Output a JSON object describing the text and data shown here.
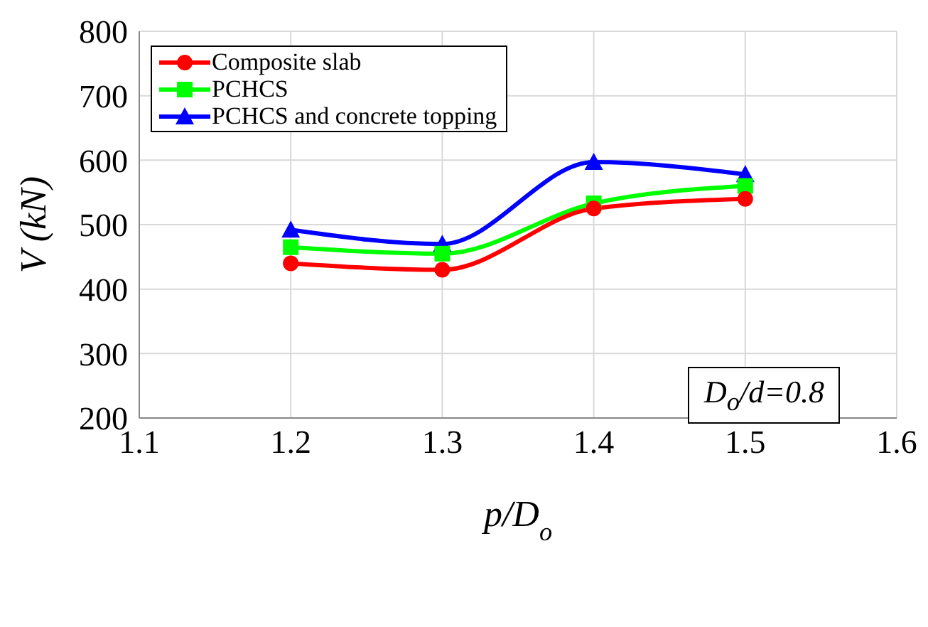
{
  "chart_data": {
    "type": "line",
    "xlabel": "p/D$_{o}$",
    "ylabel": "V (kN)",
    "x": [
      1.2,
      1.3,
      1.4,
      1.5
    ],
    "xlim": [
      1.1,
      1.6
    ],
    "xticks": [
      1.1,
      1.2,
      1.3,
      1.4,
      1.5,
      1.6
    ],
    "ylim": [
      200,
      800
    ],
    "yticks": [
      200,
      300,
      400,
      500,
      600,
      700,
      800
    ],
    "series": [
      {
        "name": "Composite slab",
        "color": "#ff0000",
        "marker": "circle",
        "values": [
          440,
          430,
          525,
          540
        ]
      },
      {
        "name": "PCHCS",
        "color": "#00ff00",
        "marker": "square",
        "values": [
          465,
          455,
          533,
          560
        ]
      },
      {
        "name": "PCHCS and concrete topping",
        "color": "#0000ff",
        "marker": "triangle",
        "values": [
          492,
          470,
          597,
          578
        ]
      }
    ],
    "grid": true,
    "legend": "top left",
    "annotations": [
      "D$_{o}$/d=0.8"
    ]
  }
}
